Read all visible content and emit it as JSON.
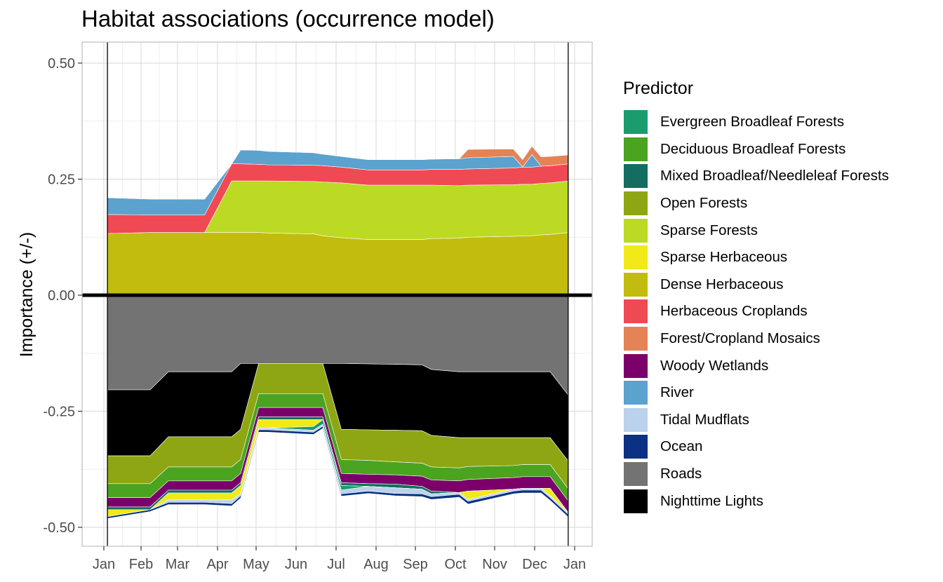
{
  "chart_data": {
    "type": "area",
    "title": "Habitat associations (occurrence model)",
    "xlabel": "",
    "ylabel": "Importance (+/-)",
    "ylim": [
      -0.5,
      0.5
    ],
    "yticks": [
      "0.50",
      "0.25",
      "0.00",
      "-0.25",
      "-0.50"
    ],
    "ytick_values": [
      0.5,
      0.25,
      0,
      -0.25,
      -0.5
    ],
    "xticks": [
      "Jan",
      "Feb",
      "Mar",
      "Apr",
      "May",
      "Jun",
      "Jul",
      "Aug",
      "Sep",
      "Oct",
      "Nov",
      "Dec",
      "Jan"
    ],
    "grid": true,
    "legend_title": "Predictor",
    "legend_position": "right",
    "x": [
      "Jan 4",
      "Feb 8",
      "Feb 22",
      "Mar 22",
      "Apr 12",
      "Apr 19",
      "May 3",
      "May 10",
      "Jun 14",
      "Jun 21",
      "Jul 5",
      "Jul 26",
      "Aug 16",
      "Sep 6",
      "Sep 13",
      "Oct 4",
      "Oct 11",
      "Nov 15",
      "Nov 22",
      "Nov 29",
      "Dec 6",
      "Dec 13",
      "Dec 27"
    ],
    "positive_series": [
      {
        "name": "Dense Herbaceous",
        "color": "#C2BC0E",
        "values": [
          0.133,
          0.135,
          0.135,
          0.135,
          0.135,
          0.135,
          0.135,
          0.134,
          0.132,
          0.128,
          0.124,
          0.12,
          0.12,
          0.12,
          0.122,
          0.123,
          0.125,
          0.127,
          0.128,
          0.128,
          0.13,
          0.131,
          0.135
        ]
      },
      {
        "name": "Sparse Forests",
        "color": "#BCDA23",
        "values": [
          0.0,
          0.0,
          0.0,
          0.0,
          0.111,
          0.111,
          0.111,
          0.112,
          0.113,
          0.116,
          0.118,
          0.117,
          0.117,
          0.117,
          0.115,
          0.113,
          0.112,
          0.111,
          0.111,
          0.111,
          0.111,
          0.111,
          0.111
        ]
      },
      {
        "name": "Herbaceous Croplands",
        "color": "#EF4A53",
        "values": [
          0.041,
          0.038,
          0.038,
          0.038,
          0.037,
          0.037,
          0.036,
          0.035,
          0.035,
          0.035,
          0.034,
          0.033,
          0.033,
          0.033,
          0.034,
          0.035,
          0.035,
          0.036,
          0.037,
          0.037,
          0.037,
          0.037,
          0.037
        ]
      },
      {
        "name": "River",
        "color": "#5BA2CE",
        "values": [
          0.036,
          0.034,
          0.034,
          0.034,
          0.0,
          0.03,
          0.03,
          0.029,
          0.027,
          0.025,
          0.023,
          0.022,
          0.022,
          0.022,
          0.022,
          0.023,
          0.024,
          0.025,
          0.0,
          0.027,
          0.0,
          0.0,
          0.0
        ]
      },
      {
        "name": "Forest/Cropland Mosaics",
        "color": "#E38356",
        "values": [
          0.0,
          0.0,
          0.0,
          0.0,
          0.0,
          0.0,
          0.0,
          0.0,
          0.0,
          0.0,
          0.0,
          0.0,
          0.0,
          0.0,
          0.0,
          0.0,
          0.018,
          0.016,
          0.016,
          0.018,
          0.02,
          0.02,
          0.019
        ]
      }
    ],
    "negative_series": [
      {
        "name": "Roads",
        "color": "#737373",
        "values": [
          0.204,
          0.204,
          0.165,
          0.165,
          0.165,
          0.147,
          0.147,
          0.147,
          0.147,
          0.147,
          0.147,
          0.148,
          0.149,
          0.15,
          0.16,
          0.165,
          0.165,
          0.165,
          0.165,
          0.165,
          0.165,
          0.165,
          0.215
        ]
      },
      {
        "name": "Nighttime Lights",
        "color": "#000000",
        "values": [
          0.142,
          0.142,
          0.14,
          0.14,
          0.14,
          0.142,
          0.0,
          0.0,
          0.0,
          0.0,
          0.142,
          0.142,
          0.142,
          0.142,
          0.142,
          0.142,
          0.142,
          0.142,
          0.142,
          0.142,
          0.142,
          0.142,
          0.142
        ]
      },
      {
        "name": "Open Forests",
        "color": "#8FA614",
        "values": [
          0.06,
          0.06,
          0.065,
          0.065,
          0.065,
          0.065,
          0.065,
          0.065,
          0.065,
          0.065,
          0.065,
          0.066,
          0.068,
          0.07,
          0.068,
          0.065,
          0.062,
          0.06,
          0.058,
          0.058,
          0.058,
          0.058,
          0.06
        ]
      },
      {
        "name": "Deciduous Broadleaf Forests",
        "color": "#4AA41F",
        "values": [
          0.03,
          0.03,
          0.03,
          0.03,
          0.03,
          0.03,
          0.03,
          0.03,
          0.03,
          0.03,
          0.03,
          0.03,
          0.028,
          0.028,
          0.028,
          0.028,
          0.028,
          0.026,
          0.026,
          0.026,
          0.026,
          0.026,
          0.026
        ]
      },
      {
        "name": "Woody Wetlands",
        "color": "#7B0069",
        "values": [
          0.02,
          0.02,
          0.02,
          0.02,
          0.02,
          0.02,
          0.02,
          0.02,
          0.02,
          0.02,
          0.02,
          0.02,
          0.02,
          0.022,
          0.024,
          0.025,
          0.025,
          0.025,
          0.025,
          0.025,
          0.025,
          0.025,
          0.025
        ]
      },
      {
        "name": "Mixed Broadleaf/Needleleaf Forests",
        "color": "#136D60",
        "values": [
          0.006,
          0.006,
          0.006,
          0.006,
          0.006,
          0.006,
          0.006,
          0.006,
          0.006,
          0.006,
          0.006,
          0.006,
          0.008,
          0.006,
          0.006,
          0.0,
          0.0,
          0.0,
          0.0,
          0.0,
          0.0,
          0.0,
          0.0
        ]
      },
      {
        "name": "Sparse Herbaceous",
        "color": "#F1E918",
        "values": [
          0.015,
          0.0,
          0.015,
          0.015,
          0.015,
          0.018,
          0.018,
          0.018,
          0.015,
          0.0,
          0.0,
          0.0,
          0.0,
          0.0,
          0.0,
          0.0,
          0.018,
          0.0,
          0.0,
          0.0,
          0.0,
          0.016,
          0.0
        ]
      },
      {
        "name": "Evergreen Broadleaf Forests",
        "color": "#1A9C6F",
        "values": [
          0.0,
          0.0,
          0.0,
          0.0,
          0.0,
          0.0,
          0.0,
          0.0,
          0.008,
          0.01,
          0.01,
          0.0,
          0.0,
          0.0,
          0.0,
          0.0,
          0.0,
          0.0,
          0.0,
          0.0,
          0.0,
          0.0,
          0.0
        ]
      },
      {
        "name": "Tidal Mudflats",
        "color": "#BAD2EC",
        "values": [
          0.0,
          0.0,
          0.005,
          0.005,
          0.008,
          0.004,
          0.004,
          0.004,
          0.004,
          0.004,
          0.008,
          0.01,
          0.012,
          0.01,
          0.006,
          0.004,
          0.004,
          0.004,
          0.004,
          0.004,
          0.004,
          0.004,
          0.004
        ]
      },
      {
        "name": "Ocean",
        "color": "#0A3183",
        "values": [
          0.004,
          0.004,
          0.005,
          0.005,
          0.005,
          0.005,
          0.005,
          0.005,
          0.005,
          0.005,
          0.005,
          0.005,
          0.005,
          0.006,
          0.006,
          0.006,
          0.006,
          0.006,
          0.006,
          0.006,
          0.006,
          0.006,
          0.006
        ]
      }
    ],
    "legend_order": [
      "Evergreen Broadleaf Forests",
      "Deciduous Broadleaf Forests",
      "Mixed Broadleaf/Needleleaf Forests",
      "Open Forests",
      "Sparse Forests",
      "Sparse Herbaceous",
      "Dense Herbaceous",
      "Herbaceous Croplands",
      "Forest/Cropland Mosaics",
      "Woody Wetlands",
      "River",
      "Tidal Mudflats",
      "Ocean",
      "Roads",
      "Nighttime Lights"
    ]
  },
  "legend": {
    "title": "Predictor",
    "items": [
      {
        "label": "Evergreen Broadleaf Forests",
        "color": "#1A9C6F"
      },
      {
        "label": "Deciduous Broadleaf Forests",
        "color": "#4AA41F"
      },
      {
        "label": "Mixed Broadleaf/Needleleaf Forests",
        "color": "#136D60"
      },
      {
        "label": "Open Forests",
        "color": "#8FA614"
      },
      {
        "label": "Sparse Forests",
        "color": "#BCDA23"
      },
      {
        "label": "Sparse Herbaceous",
        "color": "#F1E918"
      },
      {
        "label": "Dense Herbaceous",
        "color": "#C2BC0E"
      },
      {
        "label": "Herbaceous Croplands",
        "color": "#EF4A53"
      },
      {
        "label": "Forest/Cropland Mosaics",
        "color": "#E38356"
      },
      {
        "label": "Woody Wetlands",
        "color": "#7B0069"
      },
      {
        "label": "River",
        "color": "#5BA2CE"
      },
      {
        "label": "Tidal Mudflats",
        "color": "#BAD2EC"
      },
      {
        "label": "Ocean",
        "color": "#0A3183"
      },
      {
        "label": "Roads",
        "color": "#737373"
      },
      {
        "label": "Nighttime Lights",
        "color": "#000000"
      }
    ]
  }
}
